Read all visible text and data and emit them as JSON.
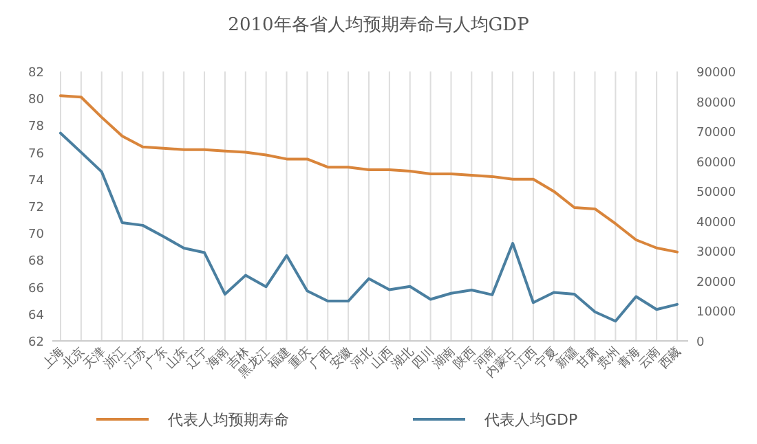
{
  "chart_data": {
    "type": "line",
    "title": "2010年各省人均预期寿命与人均GDP",
    "categories": [
      "上海",
      "北京",
      "天津",
      "浙江",
      "江苏",
      "广东",
      "山东",
      "辽宁",
      "海南",
      "吉林",
      "黑龙江",
      "福建",
      "重庆",
      "广西",
      "安徽",
      "河北",
      "山西",
      "湖北",
      "四川",
      "湖南",
      "陕西",
      "河南",
      "内蒙古",
      "江西",
      "宁夏",
      "新疆",
      "甘肃",
      "贵州",
      "青海",
      "云南",
      "西藏"
    ],
    "series": [
      {
        "name": "代表人均预期寿命",
        "color": "#d9853b",
        "values": [
          80.2,
          80.1,
          78.6,
          77.2,
          76.4,
          76.3,
          76.2,
          76.2,
          76.1,
          76.0,
          75.8,
          75.5,
          75.5,
          74.9,
          74.9,
          74.7,
          74.7,
          74.6,
          74.4,
          74.4,
          74.3,
          74.2,
          74.0,
          74.0,
          73.1,
          71.9,
          71.8,
          70.7,
          69.5,
          68.9,
          68.6
        ]
      },
      {
        "name": "代表人均GDP",
        "color": "#4a7fa0",
        "axis": "y2",
        "values": [
          69400,
          63000,
          56500,
          39500,
          38600,
          34900,
          31000,
          29500,
          15600,
          21900,
          18100,
          28500,
          16700,
          13300,
          13300,
          20800,
          17100,
          18200,
          13900,
          15900,
          17000,
          15400,
          32600,
          12800,
          16200,
          15600,
          9700,
          6600,
          14800,
          10500,
          12200
        ]
      }
    ],
    "ylim": [
      62,
      82
    ],
    "yticks": [
      62,
      64,
      66,
      68,
      70,
      72,
      74,
      76,
      78,
      80,
      82
    ],
    "y2lim": [
      0,
      90000
    ],
    "y2ticks": [
      0,
      10000,
      20000,
      30000,
      40000,
      50000,
      60000,
      70000,
      80000,
      90000
    ],
    "grid": "x",
    "legend": "bottom",
    "marker": "none",
    "line_style": "solid"
  }
}
